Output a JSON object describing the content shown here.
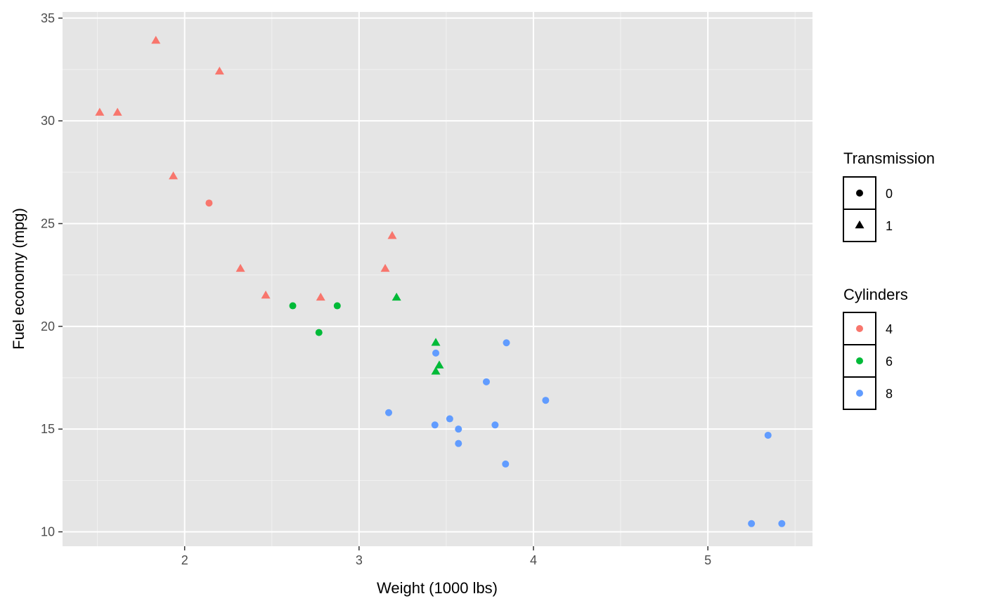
{
  "chart_data": {
    "type": "scatter",
    "xlabel": "Weight (1000 lbs)",
    "ylabel": "Fuel economy (mpg)",
    "xlim": [
      1.3,
      5.6
    ],
    "ylim": [
      9.3,
      35.3
    ],
    "x_ticks": [
      2,
      3,
      4,
      5
    ],
    "x_tick_labels": [
      "2",
      "3",
      "4",
      "5"
    ],
    "y_ticks": [
      10,
      15,
      20,
      25,
      30,
      35
    ],
    "y_tick_labels": [
      "10",
      "15",
      "20",
      "25",
      "30",
      "35"
    ],
    "grid": true,
    "background": "#e5e5e5",
    "legend_position": "right",
    "legends": [
      {
        "title": "Transmission",
        "entries": [
          {
            "label": "0",
            "shape": "circle",
            "color": "#000000"
          },
          {
            "label": "1",
            "shape": "triangle",
            "color": "#000000"
          }
        ]
      },
      {
        "title": "Cylinders",
        "entries": [
          {
            "label": "4",
            "shape": "circle",
            "color": "#f8766d"
          },
          {
            "label": "6",
            "shape": "circle",
            "color": "#00ba38"
          },
          {
            "label": "8",
            "shape": "circle",
            "color": "#619cff"
          }
        ]
      }
    ],
    "cyl_colors": {
      "4": "#f8766d",
      "6": "#00ba38",
      "8": "#619cff"
    },
    "points": [
      {
        "x": 1.835,
        "y": 33.9,
        "cyl": "4",
        "am": "1"
      },
      {
        "x": 2.2,
        "y": 32.4,
        "cyl": "4",
        "am": "1"
      },
      {
        "x": 1.513,
        "y": 30.4,
        "cyl": "4",
        "am": "1"
      },
      {
        "x": 1.615,
        "y": 30.4,
        "cyl": "4",
        "am": "1"
      },
      {
        "x": 1.935,
        "y": 27.3,
        "cyl": "4",
        "am": "1"
      },
      {
        "x": 2.14,
        "y": 26.0,
        "cyl": "4",
        "am": "0"
      },
      {
        "x": 3.19,
        "y": 24.4,
        "cyl": "4",
        "am": "1"
      },
      {
        "x": 2.32,
        "y": 22.8,
        "cyl": "4",
        "am": "1"
      },
      {
        "x": 3.15,
        "y": 22.8,
        "cyl": "4",
        "am": "1"
      },
      {
        "x": 2.465,
        "y": 21.5,
        "cyl": "4",
        "am": "1"
      },
      {
        "x": 2.78,
        "y": 21.4,
        "cyl": "4",
        "am": "1"
      },
      {
        "x": 2.62,
        "y": 21.0,
        "cyl": "6",
        "am": "0"
      },
      {
        "x": 2.875,
        "y": 21.0,
        "cyl": "6",
        "am": "0"
      },
      {
        "x": 3.215,
        "y": 21.4,
        "cyl": "6",
        "am": "1"
      },
      {
        "x": 2.77,
        "y": 19.7,
        "cyl": "6",
        "am": "0"
      },
      {
        "x": 3.44,
        "y": 19.2,
        "cyl": "6",
        "am": "1"
      },
      {
        "x": 3.46,
        "y": 18.1,
        "cyl": "6",
        "am": "1"
      },
      {
        "x": 3.44,
        "y": 17.8,
        "cyl": "6",
        "am": "1"
      },
      {
        "x": 3.44,
        "y": 18.7,
        "cyl": "8",
        "am": "0"
      },
      {
        "x": 3.845,
        "y": 19.2,
        "cyl": "8",
        "am": "0"
      },
      {
        "x": 3.73,
        "y": 17.3,
        "cyl": "8",
        "am": "0"
      },
      {
        "x": 4.07,
        "y": 16.4,
        "cyl": "8",
        "am": "0"
      },
      {
        "x": 3.17,
        "y": 15.8,
        "cyl": "8",
        "am": "0"
      },
      {
        "x": 3.52,
        "y": 15.5,
        "cyl": "8",
        "am": "0"
      },
      {
        "x": 3.435,
        "y": 15.2,
        "cyl": "8",
        "am": "0"
      },
      {
        "x": 3.78,
        "y": 15.2,
        "cyl": "8",
        "am": "0"
      },
      {
        "x": 3.57,
        "y": 15.0,
        "cyl": "8",
        "am": "0"
      },
      {
        "x": 3.57,
        "y": 14.3,
        "cyl": "8",
        "am": "0"
      },
      {
        "x": 3.84,
        "y": 13.3,
        "cyl": "8",
        "am": "0"
      },
      {
        "x": 5.345,
        "y": 14.7,
        "cyl": "8",
        "am": "0"
      },
      {
        "x": 5.25,
        "y": 10.4,
        "cyl": "8",
        "am": "0"
      },
      {
        "x": 5.424,
        "y": 10.4,
        "cyl": "8",
        "am": "0"
      }
    ]
  }
}
